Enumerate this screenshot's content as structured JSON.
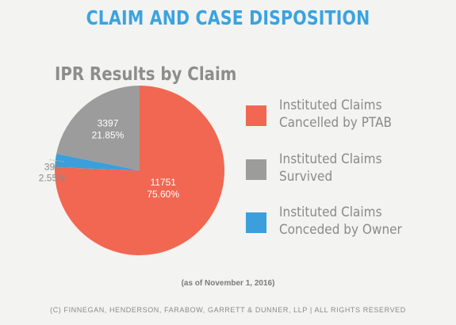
{
  "header": {
    "title": "CLAIM AND CASE DISPOSITION"
  },
  "chart_data": {
    "type": "pie",
    "title": "IPR Results by Claim",
    "slices": [
      {
        "label": "Instituted Claims\nCancelled by PTAB",
        "value": 11751,
        "value_label": "11751",
        "percent_label": "75.60%",
        "color": "#f26752"
      },
      {
        "label": "Instituted Claims\nConceded by Owner",
        "value": 396,
        "value_label": "396",
        "percent_label": "2.55%",
        "color": "#3a9fdb"
      },
      {
        "label": "Instituted Claims\nSurvived",
        "value": 3397,
        "value_label": "3397",
        "percent_label": "21.85%",
        "color": "#9c9c9c"
      }
    ],
    "legend": {
      "placement": "right",
      "order": [
        0,
        2,
        1
      ]
    }
  },
  "note": "(as of November 1, 2016)",
  "footer": "(C) FINNEGAN, HENDERSON, FARABOW, GARRETT & DUNNER, LLP | ALL RIGHTS RESERVED"
}
